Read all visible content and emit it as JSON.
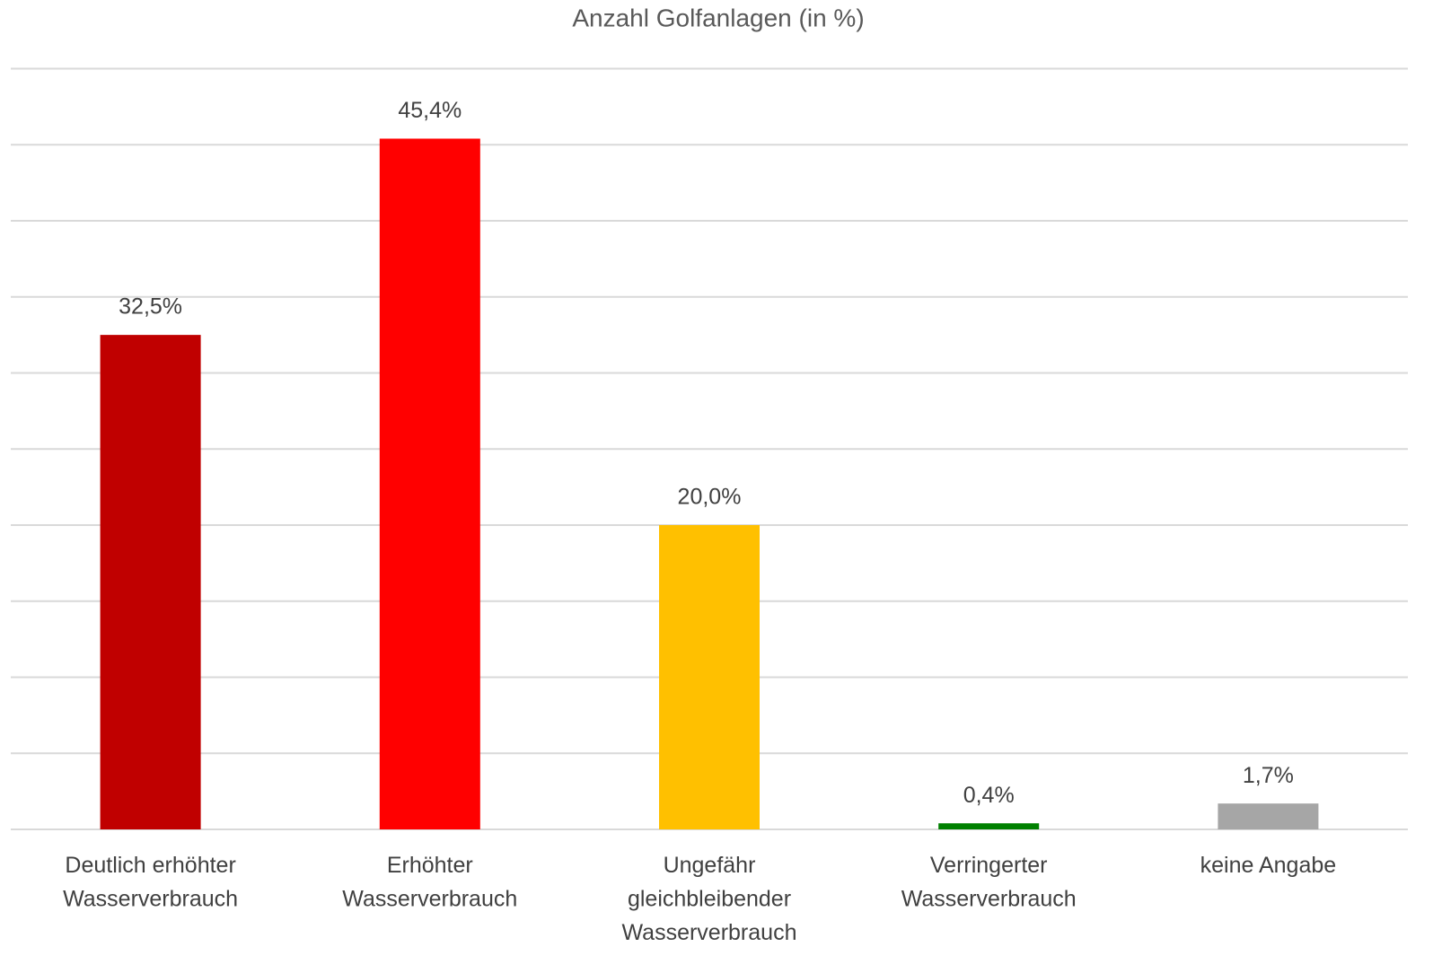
{
  "chart_data": {
    "type": "bar",
    "title": "Anzahl Golfanlagen (in %)",
    "categories": [
      [
        "Deutlich erhöhter",
        "Wasserverbrauch"
      ],
      [
        "Erhöhter",
        "Wasserverbrauch"
      ],
      [
        "Ungefähr",
        "gleichbleibender",
        "Wasserverbrauch"
      ],
      [
        "Verringerter",
        "Wasserverbrauch"
      ],
      [
        "keine Angabe"
      ]
    ],
    "values": [
      32.5,
      45.4,
      20.0,
      0.4,
      1.7
    ],
    "value_labels": [
      "32,5%",
      "45,4%",
      "20,0%",
      "0,4%",
      "1,7%"
    ],
    "colors": [
      "#c00000",
      "#ff0000",
      "#ffc000",
      "#008000",
      "#a6a6a6"
    ],
    "ylim": [
      0,
      50
    ],
    "yticks": [
      0,
      5,
      10,
      15,
      20,
      25,
      30,
      35,
      40,
      45,
      50
    ],
    "grid": true
  }
}
